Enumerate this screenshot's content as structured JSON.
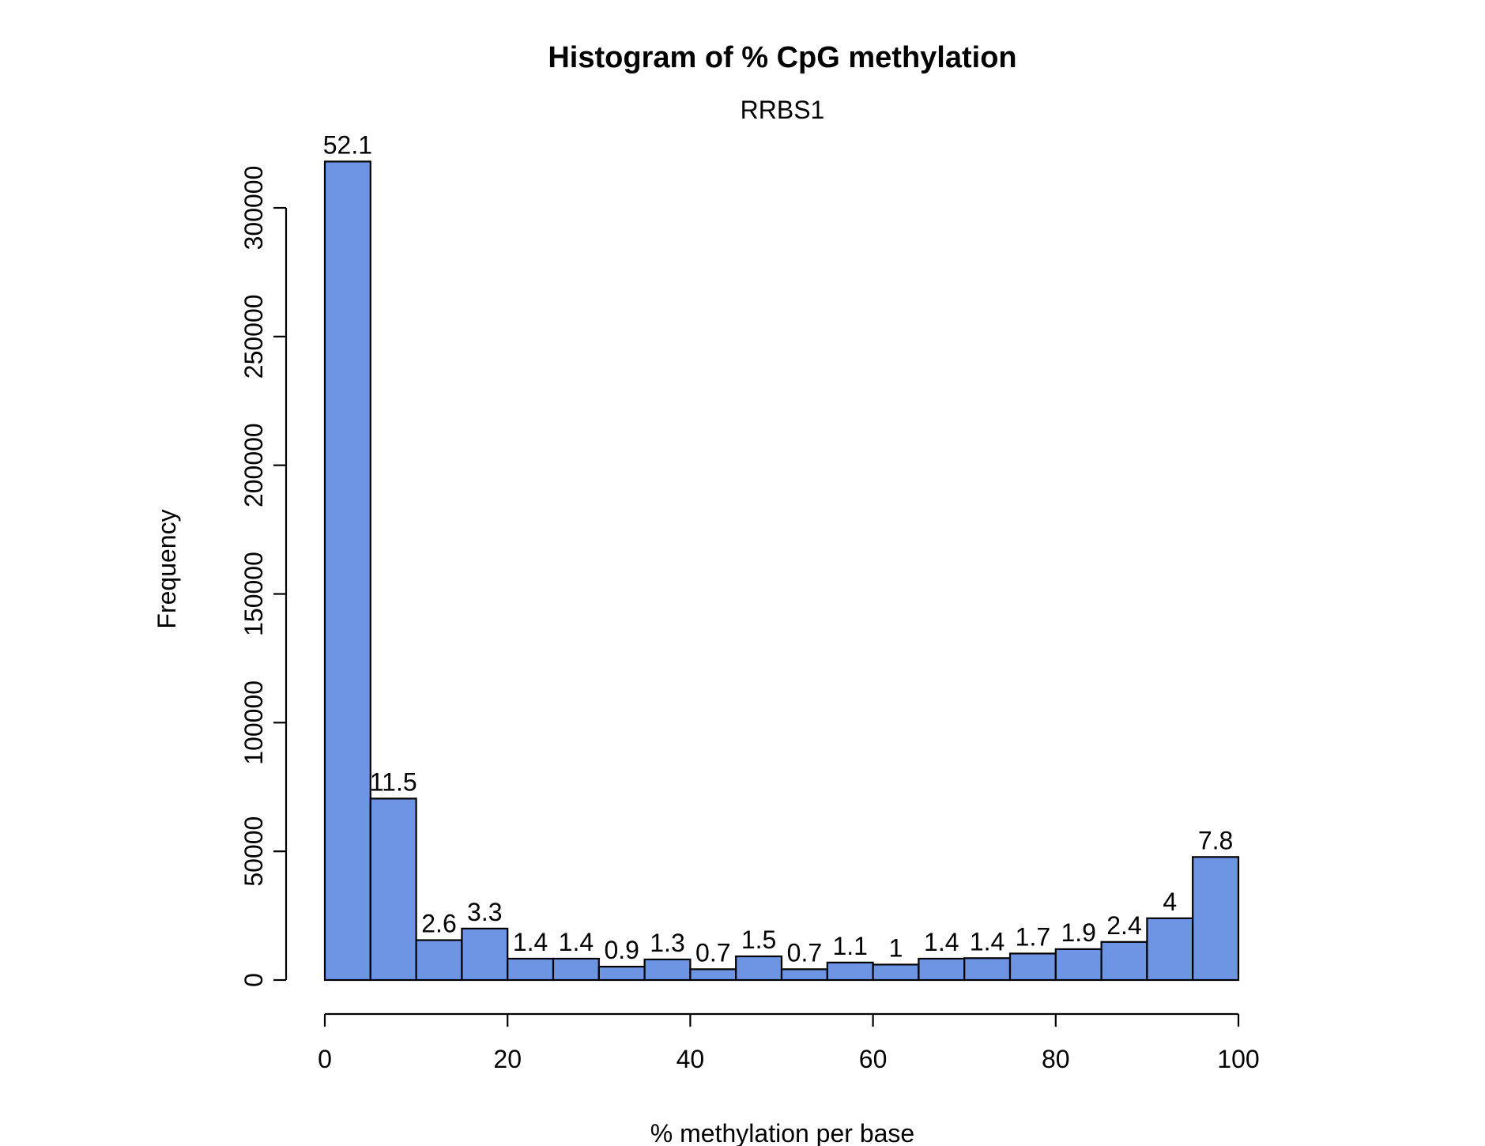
{
  "chart_data": {
    "type": "bar",
    "title": "Histogram of % CpG methylation",
    "subtitle": "RRBS1",
    "xlabel": "% methylation per base",
    "ylabel": "Frequency",
    "bar_color": "#6d95e4",
    "bin_edges": [
      0,
      5,
      10,
      15,
      20,
      25,
      30,
      35,
      40,
      45,
      50,
      55,
      60,
      65,
      70,
      75,
      80,
      85,
      90,
      95,
      100
    ],
    "values": [
      318000,
      70500,
      15500,
      20000,
      8300,
      8300,
      5200,
      8000,
      4200,
      9200,
      4200,
      6800,
      6000,
      8300,
      8500,
      10300,
      12000,
      14800,
      24000,
      47800
    ],
    "labels": [
      "52.1",
      "11.5",
      "2.6",
      "3.3",
      "1.4",
      "1.4",
      "0.9",
      "1.3",
      "0.7",
      "1.5",
      "0.7",
      "1.1",
      "1",
      "1.4",
      "1.4",
      "1.7",
      "1.9",
      "2.4",
      "4",
      "7.8"
    ],
    "xlim": [
      0,
      100
    ],
    "ylim": [
      0,
      300000
    ],
    "xticks": [
      0,
      20,
      40,
      60,
      80,
      100
    ],
    "yticks": [
      0,
      50000,
      100000,
      150000,
      200000,
      250000,
      300000
    ],
    "ytick_labels": [
      "0",
      "50000",
      "100000",
      "150000",
      "200000",
      "250000",
      "300000"
    ],
    "grid": false,
    "legend": false
  }
}
